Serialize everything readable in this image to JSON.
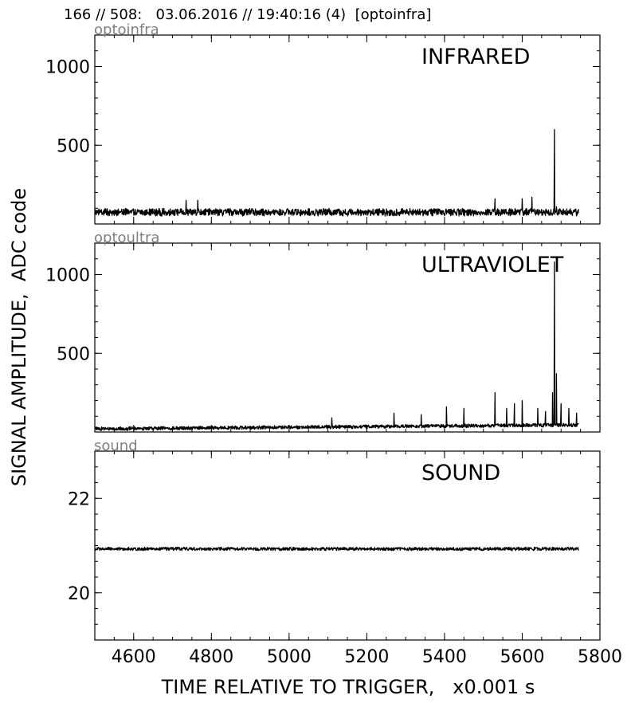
{
  "header": {
    "title": "166 // 508:   03.06.2016 // 19:40:16 (4)  [optoinfra]"
  },
  "axes": {
    "ylabel": "SIGNAL AMPLITUDE,  ADC code",
    "xlabel": "TIME RELATIVE TO TRIGGER,   x0.001 s"
  },
  "chart_data": [
    {
      "type": "line",
      "title": "INFRARED",
      "corner_label": "optoinfra",
      "xlim": [
        4500,
        5800
      ],
      "ylim": [
        0,
        1200
      ],
      "xticks": [
        4600,
        4800,
        5000,
        5200,
        5400,
        5600,
        5800
      ],
      "yticks": [
        500,
        1000
      ],
      "grid": false,
      "series": [
        {
          "x_range": [
            4500,
            5745
          ],
          "baseline": 75,
          "noise": 20,
          "spikes": [
            [
              4735,
              150
            ],
            [
              4765,
              150
            ],
            [
              5530,
              160
            ],
            [
              5600,
              160
            ],
            [
              5625,
              170
            ],
            [
              5683,
              600
            ],
            [
              5688,
              110
            ]
          ]
        }
      ]
    },
    {
      "type": "line",
      "title": "ULTRAVIOLET",
      "corner_label": "optoultra",
      "xlim": [
        4500,
        5800
      ],
      "ylim": [
        0,
        1200
      ],
      "xticks": [
        4600,
        4800,
        5000,
        5200,
        5400,
        5600,
        5800
      ],
      "yticks": [
        500,
        1000
      ],
      "grid": false,
      "series": [
        {
          "x_range": [
            4500,
            5745
          ],
          "baseline": 20,
          "baseline_end": 45,
          "noise": 10,
          "spikes": [
            [
              5110,
              90
            ],
            [
              5270,
              120
            ],
            [
              5340,
              110
            ],
            [
              5405,
              160
            ],
            [
              5450,
              150
            ],
            [
              5530,
              250
            ],
            [
              5560,
              150
            ],
            [
              5580,
              180
            ],
            [
              5600,
              200
            ],
            [
              5640,
              150
            ],
            [
              5660,
              130
            ],
            [
              5678,
              250
            ],
            [
              5683,
              1080
            ],
            [
              5688,
              370
            ],
            [
              5700,
              180
            ],
            [
              5720,
              150
            ],
            [
              5740,
              120
            ]
          ]
        }
      ]
    },
    {
      "type": "line",
      "title": "SOUND",
      "corner_label": "sound",
      "xlim": [
        4500,
        5800
      ],
      "ylim": [
        19,
        23
      ],
      "xticks": [
        4600,
        4800,
        5000,
        5200,
        5400,
        5600,
        5800
      ],
      "yticks": [
        20,
        22
      ],
      "grid": false,
      "series": [
        {
          "x_range": [
            4500,
            5745
          ],
          "baseline": 20.93,
          "noise": 0.03,
          "spikes": []
        }
      ]
    }
  ]
}
